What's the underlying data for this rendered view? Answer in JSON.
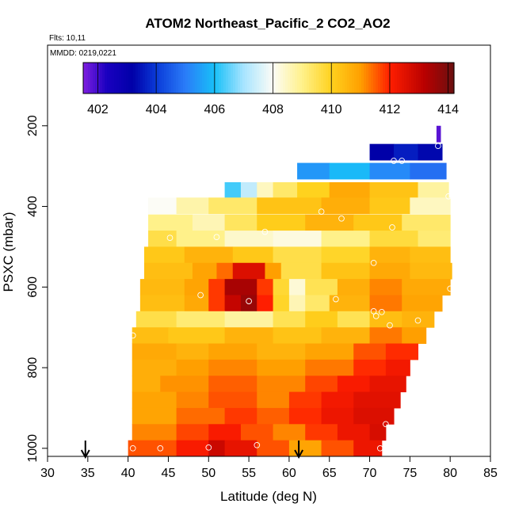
{
  "chart_data": {
    "type": "heatmap",
    "title": "ATOM2 Northeast_Pacific_2 CO2_AO2",
    "flights_label": "Flts: 10,11",
    "dates_label": "MMDD: 0219,0221",
    "xlabel": "Latitude (deg N)",
    "ylabel": "PSXC (mbar)",
    "xlim": [
      30,
      85
    ],
    "ylim": [
      1020,
      0
    ],
    "xticks": [
      "30",
      "35",
      "40",
      "45",
      "50",
      "55",
      "60",
      "65",
      "70",
      "75",
      "80",
      "85"
    ],
    "yticks": [
      "200",
      "400",
      "600",
      "800",
      "1000"
    ],
    "colorbar": {
      "range": [
        401.5,
        414.2
      ],
      "ticks": [
        "402",
        "404",
        "406",
        "408",
        "410",
        "412",
        "414"
      ],
      "stops": [
        {
          "v": 401.5,
          "c": "#7f1fe0"
        },
        {
          "v": 402.3,
          "c": "#1a00c0"
        },
        {
          "v": 403.2,
          "c": "#0000a8"
        },
        {
          "v": 404.0,
          "c": "#0a3ad8"
        },
        {
          "v": 405.0,
          "c": "#2a7cf8"
        },
        {
          "v": 406.0,
          "c": "#18c0f8"
        },
        {
          "v": 407.0,
          "c": "#a8e4ff"
        },
        {
          "v": 408.0,
          "c": "#fcfcf6"
        },
        {
          "v": 409.0,
          "c": "#fff18a"
        },
        {
          "v": 410.0,
          "c": "#ffd21e"
        },
        {
          "v": 411.0,
          "c": "#ff9f00"
        },
        {
          "v": 412.0,
          "c": "#ff1e00"
        },
        {
          "v": 413.2,
          "c": "#b80000"
        },
        {
          "v": 414.2,
          "c": "#6a1010"
        }
      ]
    },
    "levels": [
      {
        "p": 220,
        "segs": [
          [
            78.3,
            78.8,
            401.8
          ]
        ]
      },
      {
        "p": 265,
        "segs": [
          [
            70.0,
            73.0,
            403.2
          ],
          [
            73.0,
            76.0,
            403.6
          ],
          [
            76.0,
            79.0,
            403.3
          ]
        ]
      },
      {
        "p": 312,
        "segs": [
          [
            61.0,
            65.0,
            405.4
          ],
          [
            65.0,
            70.0,
            405.9
          ],
          [
            70.0,
            75.0,
            405.2
          ],
          [
            75.0,
            79.5,
            404.8
          ]
        ]
      },
      {
        "p": 360,
        "segs": [
          [
            52.0,
            54.0,
            406.3
          ],
          [
            54.0,
            56.0,
            407.3
          ],
          [
            56.0,
            58.0,
            408.5
          ],
          [
            58.0,
            61.0,
            409.3
          ],
          [
            61.0,
            65.0,
            410.0
          ],
          [
            65.0,
            70.0,
            410.8
          ],
          [
            70.0,
            76.0,
            410.3
          ],
          [
            76.0,
            79.8,
            408.8
          ]
        ]
      },
      {
        "p": 398,
        "segs": [
          [
            42.5,
            46.0,
            408.0
          ],
          [
            46.0,
            50.0,
            408.7
          ],
          [
            50.0,
            56.0,
            409.3
          ],
          [
            56.0,
            64.0,
            410.3
          ],
          [
            64.0,
            70.0,
            410.7
          ],
          [
            70.0,
            75.0,
            410.2
          ],
          [
            75.0,
            80.0,
            408.5
          ]
        ]
      },
      {
        "p": 440,
        "segs": [
          [
            42.5,
            48.0,
            409.0
          ],
          [
            48.0,
            52.0,
            408.6
          ],
          [
            52.0,
            56.0,
            409.4
          ],
          [
            56.0,
            62.0,
            410.1
          ],
          [
            62.0,
            68.0,
            410.6
          ],
          [
            68.0,
            74.0,
            410.2
          ],
          [
            74.0,
            80.0,
            409.3
          ]
        ]
      },
      {
        "p": 480,
        "segs": [
          [
            42.5,
            46.0,
            409.6
          ],
          [
            46.0,
            52.0,
            409.0
          ],
          [
            52.0,
            58.0,
            408.4
          ],
          [
            58.0,
            64.0,
            408.2
          ],
          [
            64.0,
            70.0,
            409.0
          ],
          [
            70.0,
            76.0,
            409.7
          ],
          [
            76.0,
            80.0,
            409.2
          ]
        ]
      },
      {
        "p": 520,
        "segs": [
          [
            42.0,
            47.0,
            410.2
          ],
          [
            47.0,
            53.0,
            410.6
          ],
          [
            53.0,
            58.0,
            410.2
          ],
          [
            58.0,
            64.0,
            409.6
          ],
          [
            64.0,
            70.0,
            409.9
          ],
          [
            70.0,
            75.0,
            410.6
          ],
          [
            75.0,
            80.0,
            410.4
          ]
        ]
      },
      {
        "p": 560,
        "segs": [
          [
            42.0,
            48.0,
            410.4
          ],
          [
            48.0,
            51.0,
            410.9
          ],
          [
            51.0,
            53.0,
            411.4
          ],
          [
            53.0,
            57.0,
            412.6
          ],
          [
            57.0,
            59.0,
            411.0
          ],
          [
            59.0,
            64.0,
            409.6
          ],
          [
            64.0,
            70.0,
            410.3
          ],
          [
            70.0,
            75.0,
            410.8
          ],
          [
            75.0,
            80.2,
            410.5
          ]
        ]
      },
      {
        "p": 600,
        "segs": [
          [
            41.5,
            47.0,
            410.5
          ],
          [
            47.0,
            50.0,
            410.9
          ],
          [
            50.0,
            52.0,
            411.8
          ],
          [
            52.0,
            56.0,
            413.4
          ],
          [
            56.0,
            58.0,
            411.8
          ],
          [
            58.0,
            60.0,
            409.8
          ],
          [
            60.0,
            62.0,
            408.3
          ],
          [
            62.0,
            66.0,
            409.5
          ],
          [
            66.0,
            70.0,
            410.7
          ],
          [
            70.0,
            74.0,
            411.2
          ],
          [
            74.0,
            80.0,
            410.8
          ]
        ]
      },
      {
        "p": 640,
        "segs": [
          [
            41.5,
            47.0,
            410.4
          ],
          [
            47.0,
            50.0,
            410.8
          ],
          [
            50.0,
            52.0,
            411.8
          ],
          [
            52.0,
            54.0,
            413.0
          ],
          [
            54.0,
            56.0,
            413.6
          ],
          [
            56.0,
            58.0,
            412.0
          ],
          [
            58.0,
            60.0,
            409.9
          ],
          [
            60.0,
            62.0,
            408.6
          ],
          [
            62.0,
            65.0,
            409.3
          ],
          [
            65.0,
            70.0,
            410.6
          ],
          [
            70.0,
            74.0,
            411.3
          ],
          [
            74.0,
            79.0,
            410.9
          ]
        ]
      },
      {
        "p": 680,
        "segs": [
          [
            41.0,
            46.0,
            409.6
          ],
          [
            46.0,
            52.0,
            409.2
          ],
          [
            52.0,
            58.0,
            408.8
          ],
          [
            58.0,
            62.0,
            409.5
          ],
          [
            62.0,
            66.0,
            410.1
          ],
          [
            66.0,
            70.0,
            409.5
          ],
          [
            70.0,
            74.0,
            410.4
          ],
          [
            74.0,
            78.0,
            410.6
          ]
        ]
      },
      {
        "p": 720,
        "segs": [
          [
            40.5,
            45.0,
            410.4
          ],
          [
            45.0,
            52.0,
            410.2
          ],
          [
            52.0,
            58.0,
            410.6
          ],
          [
            58.0,
            64.0,
            410.3
          ],
          [
            64.0,
            70.0,
            410.6
          ],
          [
            70.0,
            74.0,
            411.3
          ],
          [
            74.0,
            77.0,
            411.0
          ]
        ]
      },
      {
        "p": 760,
        "segs": [
          [
            40.5,
            46.0,
            410.8
          ],
          [
            46.0,
            50.0,
            410.6
          ],
          [
            50.0,
            56.0,
            410.9
          ],
          [
            56.0,
            62.0,
            410.6
          ],
          [
            62.0,
            68.0,
            410.9
          ],
          [
            68.0,
            72.0,
            411.6
          ],
          [
            72.0,
            76.0,
            411.9
          ]
        ]
      },
      {
        "p": 800,
        "segs": [
          [
            40.5,
            46.0,
            410.7
          ],
          [
            46.0,
            50.0,
            411.0
          ],
          [
            50.0,
            56.0,
            411.2
          ],
          [
            56.0,
            62.0,
            411.0
          ],
          [
            62.0,
            68.0,
            411.3
          ],
          [
            68.0,
            72.0,
            411.9
          ],
          [
            72.0,
            75.0,
            412.2
          ]
        ]
      },
      {
        "p": 840,
        "segs": [
          [
            40.5,
            44.0,
            410.7
          ],
          [
            44.0,
            50.0,
            411.1
          ],
          [
            50.0,
            56.0,
            411.5
          ],
          [
            56.0,
            62.0,
            411.2
          ],
          [
            62.0,
            66.0,
            411.7
          ],
          [
            66.0,
            70.0,
            412.1
          ],
          [
            70.0,
            74.5,
            412.4
          ]
        ]
      },
      {
        "p": 880,
        "segs": [
          [
            40.5,
            46.0,
            410.9
          ],
          [
            46.0,
            50.0,
            411.2
          ],
          [
            50.0,
            56.0,
            411.6
          ],
          [
            56.0,
            60.0,
            411.2
          ],
          [
            60.0,
            64.0,
            411.8
          ],
          [
            64.0,
            68.0,
            412.2
          ],
          [
            68.0,
            73.8,
            412.5
          ]
        ]
      },
      {
        "p": 920,
        "segs": [
          [
            40.5,
            46.0,
            410.9
          ],
          [
            46.0,
            52.0,
            411.4
          ],
          [
            52.0,
            56.0,
            411.8
          ],
          [
            56.0,
            60.0,
            411.5
          ],
          [
            60.0,
            64.0,
            411.9
          ],
          [
            64.0,
            68.0,
            412.3
          ],
          [
            68.0,
            73.0,
            412.6
          ]
        ]
      },
      {
        "p": 960,
        "segs": [
          [
            40.5,
            46.0,
            411.2
          ],
          [
            46.0,
            50.0,
            411.7
          ],
          [
            50.0,
            54.0,
            412.1
          ],
          [
            54.0,
            58.0,
            411.6
          ],
          [
            58.0,
            62.0,
            411.2
          ],
          [
            62.0,
            66.0,
            411.8
          ],
          [
            66.0,
            70.0,
            412.3
          ],
          [
            70.0,
            72.0,
            412.7
          ]
        ]
      },
      {
        "p": 1000,
        "segs": [
          [
            40.0,
            46.0,
            411.6
          ],
          [
            46.0,
            50.0,
            412.1
          ],
          [
            50.0,
            52.0,
            412.9
          ],
          [
            52.0,
            56.0,
            412.4
          ],
          [
            56.0,
            60.0,
            411.6
          ],
          [
            60.0,
            64.0,
            410.9
          ],
          [
            64.0,
            68.0,
            411.6
          ],
          [
            68.0,
            71.5,
            412.3
          ]
        ]
      }
    ],
    "samples": [
      [
        40.6,
        1000
      ],
      [
        44.0,
        1000
      ],
      [
        50.0,
        998
      ],
      [
        56.0,
        992
      ],
      [
        71.3,
        1000
      ],
      [
        72.0,
        940
      ],
      [
        40.6,
        720
      ],
      [
        76.0,
        683
      ],
      [
        72.5,
        695
      ],
      [
        70.5,
        660
      ],
      [
        70.8,
        672
      ],
      [
        71.5,
        662
      ],
      [
        55.0,
        635
      ],
      [
        65.8,
        630
      ],
      [
        49.0,
        620
      ],
      [
        80.0,
        604
      ],
      [
        70.5,
        540
      ],
      [
        45.2,
        478
      ],
      [
        51.0,
        476
      ],
      [
        57.0,
        463
      ],
      [
        66.5,
        430
      ],
      [
        64.0,
        413
      ],
      [
        72.8,
        452
      ],
      [
        79.8,
        375
      ],
      [
        73.0,
        287
      ],
      [
        74.0,
        287
      ],
      [
        78.5,
        250
      ]
    ],
    "arrows_lat": [
      34.7,
      61.2
    ]
  }
}
